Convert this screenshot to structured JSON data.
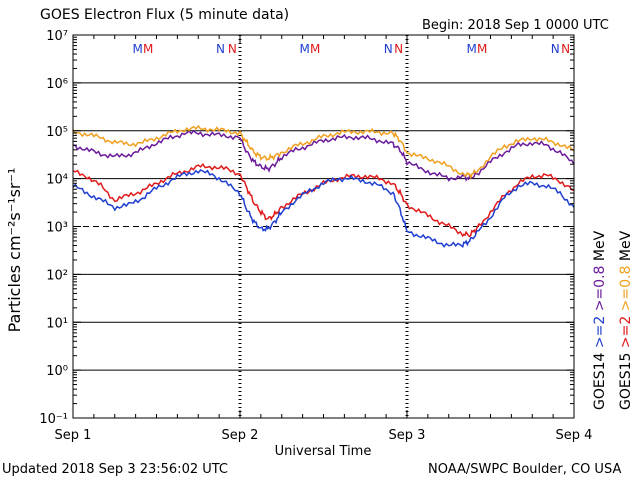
{
  "chart_data": {
    "type": "line",
    "title": "GOES Electron Flux (5 minute data)",
    "begin_label": "Begin: 2018 Sep 1 0000 UTC",
    "xlabel": "Universal Time",
    "ylabel": "Particles cm⁻²s⁻¹sr⁻¹",
    "y_scale": "log",
    "ylim_exponent": [
      -1,
      7
    ],
    "y_ticks": [
      {
        "exp": 7,
        "label": "10⁷"
      },
      {
        "exp": 6,
        "label": "10⁶"
      },
      {
        "exp": 5,
        "label": "10⁵"
      },
      {
        "exp": 4,
        "label": "10⁴"
      },
      {
        "exp": 3,
        "label": "10³"
      },
      {
        "exp": 2,
        "label": "10²"
      },
      {
        "exp": 1,
        "label": "10¹"
      },
      {
        "exp": 0,
        "label": "10⁰"
      },
      {
        "exp": -1,
        "label": "10⁻¹"
      }
    ],
    "xlim_hours": [
      0,
      72
    ],
    "x_ticks": [
      {
        "hour": 0,
        "label": "Sep 1"
      },
      {
        "hour": 24,
        "label": "Sep 2"
      },
      {
        "hour": 48,
        "label": "Sep 3"
      },
      {
        "hour": 72,
        "label": "Sep 4"
      }
    ],
    "threshold_exp": 3,
    "markers": [
      {
        "hour": 9.3,
        "label": "M",
        "color": "#1f3fd0"
      },
      {
        "hour": 10.8,
        "label": "M",
        "color": "#e01a1a"
      },
      {
        "hour": 21.2,
        "label": "N",
        "color": "#1f3fd0"
      },
      {
        "hour": 22.9,
        "label": "N",
        "color": "#e01a1a"
      },
      {
        "hour": 33.3,
        "label": "M",
        "color": "#1f3fd0"
      },
      {
        "hour": 34.8,
        "label": "M",
        "color": "#e01a1a"
      },
      {
        "hour": 45.3,
        "label": "N",
        "color": "#1f3fd0"
      },
      {
        "hour": 46.8,
        "label": "N",
        "color": "#e01a1a"
      },
      {
        "hour": 57.3,
        "label": "M",
        "color": "#1f3fd0"
      },
      {
        "hour": 58.8,
        "label": "M",
        "color": "#e01a1a"
      },
      {
        "hour": 69.3,
        "label": "N",
        "color": "#1f3fd0"
      },
      {
        "hour": 70.8,
        "label": "N",
        "color": "#e01a1a"
      }
    ],
    "legend_right": [
      {
        "sat": "GOES14",
        "parts": [
          {
            "text": ">=2",
            "color": "#1f3fd0"
          },
          {
            "text": ">=0.8",
            "color": "#6a1b9a"
          },
          {
            "text": "MeV",
            "color": "#000000"
          }
        ]
      },
      {
        "sat": "GOES15",
        "parts": [
          {
            "text": ">=2",
            "color": "#e01a1a"
          },
          {
            "text": ">=0.8",
            "color": "#f0a020"
          },
          {
            "text": "MeV",
            "color": "#000000"
          }
        ]
      }
    ],
    "series": [
      {
        "name": "GOES14 >=0.8 MeV",
        "color": "#6a1b9a",
        "hours": [
          0,
          2,
          4,
          6,
          8,
          10,
          12,
          14,
          16,
          18,
          20,
          22,
          24,
          25,
          26,
          27,
          28,
          29,
          30,
          32,
          34,
          36,
          38,
          40,
          42,
          44,
          46,
          47,
          48,
          50,
          52,
          54,
          56,
          57,
          58,
          60,
          62,
          64,
          66,
          68,
          70,
          72
        ],
        "log_values": [
          4.7,
          4.6,
          4.52,
          4.46,
          4.5,
          4.6,
          4.75,
          4.85,
          4.95,
          4.95,
          4.92,
          4.9,
          4.85,
          4.55,
          4.35,
          4.25,
          4.2,
          4.3,
          4.45,
          4.6,
          4.7,
          4.8,
          4.85,
          4.87,
          4.85,
          4.8,
          4.72,
          4.6,
          4.35,
          4.2,
          4.1,
          4.0,
          4.05,
          4.0,
          4.1,
          4.35,
          4.55,
          4.7,
          4.75,
          4.7,
          4.55,
          4.3
        ]
      },
      {
        "name": "GOES15 >=0.8 MeV",
        "color": "#f0a020",
        "hours": [
          0,
          2,
          4,
          6,
          8,
          10,
          12,
          14,
          16,
          18,
          20,
          22,
          24,
          25,
          26,
          27,
          28,
          29,
          30,
          32,
          34,
          36,
          38,
          40,
          42,
          44,
          46,
          47,
          48,
          50,
          52,
          54,
          56,
          57,
          58,
          60,
          62,
          64,
          66,
          68,
          70,
          72
        ],
        "log_values": [
          4.97,
          4.93,
          4.85,
          4.76,
          4.72,
          4.75,
          4.85,
          4.95,
          5.03,
          5.05,
          5.03,
          5.0,
          4.95,
          4.75,
          4.55,
          4.45,
          4.42,
          4.47,
          4.55,
          4.68,
          4.78,
          4.88,
          4.95,
          4.98,
          4.98,
          4.97,
          4.95,
          4.8,
          4.55,
          4.45,
          4.38,
          4.25,
          4.1,
          4.07,
          4.15,
          4.45,
          4.68,
          4.78,
          4.85,
          4.8,
          4.72,
          4.58
        ]
      },
      {
        "name": "GOES15 >=2 MeV",
        "color": "#e01a1a",
        "hours": [
          0,
          2,
          4,
          6,
          8,
          10,
          12,
          14,
          16,
          18,
          20,
          22,
          24,
          25,
          26,
          27,
          28,
          29,
          30,
          32,
          34,
          36,
          38,
          40,
          42,
          44,
          46,
          47,
          48,
          50,
          52,
          54,
          56,
          57,
          58,
          60,
          62,
          64,
          66,
          68,
          70,
          72
        ],
        "log_values": [
          4.15,
          4.05,
          3.85,
          3.55,
          3.65,
          3.75,
          3.9,
          4.05,
          4.15,
          4.25,
          4.25,
          4.2,
          4.1,
          3.8,
          3.5,
          3.3,
          3.15,
          3.25,
          3.4,
          3.6,
          3.75,
          3.9,
          4.0,
          4.05,
          4.05,
          4.0,
          3.9,
          3.7,
          3.45,
          3.3,
          3.15,
          3.0,
          2.85,
          2.82,
          2.95,
          3.3,
          3.65,
          3.9,
          4.05,
          4.07,
          3.95,
          3.75
        ]
      },
      {
        "name": "GOES14 >=2 MeV",
        "color": "#1f3fd0",
        "hours": [
          0,
          2,
          4,
          6,
          8,
          10,
          12,
          14,
          16,
          18,
          20,
          22,
          24,
          25,
          26,
          27,
          28,
          29,
          30,
          32,
          34,
          36,
          38,
          40,
          42,
          44,
          46,
          47,
          48,
          50,
          52,
          54,
          56,
          57,
          58,
          60,
          62,
          64,
          66,
          68,
          70,
          72
        ],
        "log_values": [
          3.85,
          3.7,
          3.55,
          3.4,
          3.45,
          3.6,
          3.8,
          3.95,
          4.1,
          4.15,
          4.1,
          3.9,
          3.7,
          3.35,
          3.1,
          2.95,
          2.95,
          3.1,
          3.3,
          3.55,
          3.75,
          3.9,
          4.0,
          4.0,
          3.95,
          3.85,
          3.7,
          3.35,
          2.9,
          2.8,
          2.7,
          2.6,
          2.62,
          2.7,
          2.85,
          3.2,
          3.6,
          3.85,
          3.9,
          3.85,
          3.7,
          3.4
        ]
      }
    ]
  },
  "footer": {
    "updated": "Updated 2018 Sep  3 23:56:02 UTC",
    "credit": "NOAA/SWPC Boulder, CO USA"
  }
}
